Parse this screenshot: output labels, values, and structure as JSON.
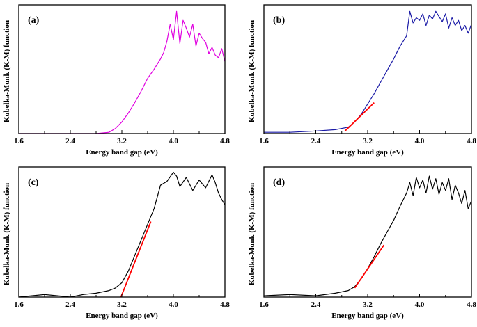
{
  "chart_data": [
    {
      "type": "line",
      "panel_label": "(a)",
      "xlabel": "Energy band gap (eV)",
      "ylabel": "Kubelka-Munk (K-M) function",
      "xlim": [
        1.6,
        4.8
      ],
      "ylim": [
        0,
        1.0
      ],
      "xticks": [
        "1.6",
        "2.4",
        "3.2",
        "4.0",
        "4.8"
      ],
      "series": [
        {
          "name": "K-M spectrum",
          "color": "#e000e0",
          "x": [
            1.6,
            2.0,
            2.4,
            2.8,
            3.0,
            3.1,
            3.2,
            3.3,
            3.4,
            3.5,
            3.6,
            3.7,
            3.8,
            3.85,
            3.9,
            3.95,
            4.0,
            4.05,
            4.1,
            4.15,
            4.2,
            4.25,
            4.3,
            4.35,
            4.4,
            4.45,
            4.5,
            4.55,
            4.6,
            4.65,
            4.7,
            4.75,
            4.8
          ],
          "y": [
            0.0,
            0.0,
            0.0,
            0.0,
            0.01,
            0.04,
            0.09,
            0.16,
            0.24,
            0.33,
            0.43,
            0.5,
            0.58,
            0.63,
            0.72,
            0.85,
            0.73,
            0.95,
            0.7,
            0.88,
            0.82,
            0.75,
            0.85,
            0.68,
            0.78,
            0.74,
            0.71,
            0.62,
            0.67,
            0.61,
            0.59,
            0.66,
            0.56
          ]
        }
      ]
    },
    {
      "type": "line",
      "panel_label": "(b)",
      "xlabel": "Energy band gap (eV)",
      "ylabel": "Kubelka-Munk (K-M) function",
      "xlim": [
        1.6,
        4.8
      ],
      "ylim": [
        0,
        1.0
      ],
      "xticks": [
        "1.6",
        "2.4",
        "3.2",
        "4.0",
        "4.8"
      ],
      "series": [
        {
          "name": "K-M spectrum",
          "color": "#1a1aa6",
          "x": [
            1.6,
            2.0,
            2.4,
            2.7,
            2.9,
            3.0,
            3.1,
            3.2,
            3.3,
            3.4,
            3.5,
            3.6,
            3.7,
            3.8,
            3.85,
            3.9,
            3.95,
            4.0,
            4.05,
            4.1,
            4.15,
            4.2,
            4.25,
            4.3,
            4.35,
            4.4,
            4.45,
            4.5,
            4.55,
            4.6,
            4.65,
            4.7,
            4.75,
            4.8
          ],
          "y": [
            0.01,
            0.01,
            0.02,
            0.03,
            0.05,
            0.09,
            0.15,
            0.23,
            0.31,
            0.4,
            0.49,
            0.58,
            0.68,
            0.76,
            0.95,
            0.86,
            0.9,
            0.88,
            0.93,
            0.84,
            0.92,
            0.89,
            0.95,
            0.91,
            0.87,
            0.93,
            0.82,
            0.9,
            0.84,
            0.88,
            0.8,
            0.84,
            0.78,
            0.85
          ]
        },
        {
          "name": "linear fit",
          "color": "#ff0000",
          "x": [
            2.85,
            3.3
          ],
          "y": [
            0.02,
            0.24
          ]
        }
      ]
    },
    {
      "type": "line",
      "panel_label": "(c)",
      "xlabel": "Energy band gap (eV)",
      "ylabel": "Kubelka-Munk (K-M) function",
      "xlim": [
        1.6,
        4.8
      ],
      "ylim": [
        0,
        1.0
      ],
      "xticks": [
        "1.6",
        "2.4",
        "3.2",
        "4.0",
        "4.8"
      ],
      "series": [
        {
          "name": "K-M spectrum",
          "color": "#000000",
          "x": [
            1.6,
            1.8,
            2.0,
            2.2,
            2.4,
            2.6,
            2.8,
            3.0,
            3.1,
            3.2,
            3.3,
            3.4,
            3.5,
            3.6,
            3.7,
            3.8,
            3.9,
            4.0,
            4.05,
            4.1,
            4.2,
            4.3,
            4.4,
            4.5,
            4.6,
            4.65,
            4.7,
            4.75,
            4.8
          ],
          "y": [
            0.0,
            0.01,
            0.02,
            0.01,
            0.0,
            0.02,
            0.03,
            0.05,
            0.07,
            0.11,
            0.2,
            0.32,
            0.44,
            0.56,
            0.68,
            0.86,
            0.89,
            0.96,
            0.93,
            0.85,
            0.92,
            0.82,
            0.9,
            0.84,
            0.94,
            0.88,
            0.8,
            0.75,
            0.71
          ]
        },
        {
          "name": "linear fit",
          "color": "#ff0000",
          "x": [
            3.17,
            3.65
          ],
          "y": [
            -0.02,
            0.58
          ]
        }
      ]
    },
    {
      "type": "line",
      "panel_label": "(d)",
      "xlabel": "Energy band gap (eV)",
      "ylabel": "Kubelka-Munk (K-M) function",
      "xlim": [
        1.6,
        4.8
      ],
      "ylim": [
        0,
        1.0
      ],
      "xticks": [
        "1.6",
        "2.4",
        "3.2",
        "4.0",
        "4.8"
      ],
      "series": [
        {
          "name": "K-M spectrum",
          "color": "#000000",
          "x": [
            1.6,
            2.0,
            2.4,
            2.7,
            2.9,
            3.0,
            3.1,
            3.2,
            3.3,
            3.4,
            3.5,
            3.6,
            3.7,
            3.8,
            3.85,
            3.9,
            3.95,
            4.0,
            4.05,
            4.1,
            4.15,
            4.2,
            4.25,
            4.3,
            4.35,
            4.4,
            4.45,
            4.5,
            4.55,
            4.6,
            4.65,
            4.7,
            4.75,
            4.8
          ],
          "y": [
            0.01,
            0.02,
            0.01,
            0.03,
            0.05,
            0.08,
            0.14,
            0.22,
            0.31,
            0.41,
            0.5,
            0.59,
            0.7,
            0.8,
            0.88,
            0.78,
            0.92,
            0.84,
            0.9,
            0.8,
            0.93,
            0.83,
            0.91,
            0.79,
            0.88,
            0.82,
            0.91,
            0.75,
            0.86,
            0.8,
            0.72,
            0.82,
            0.68,
            0.74
          ]
        },
        {
          "name": "linear fit",
          "color": "#ff0000",
          "x": [
            3.0,
            3.45
          ],
          "y": [
            0.07,
            0.4
          ]
        }
      ]
    }
  ]
}
